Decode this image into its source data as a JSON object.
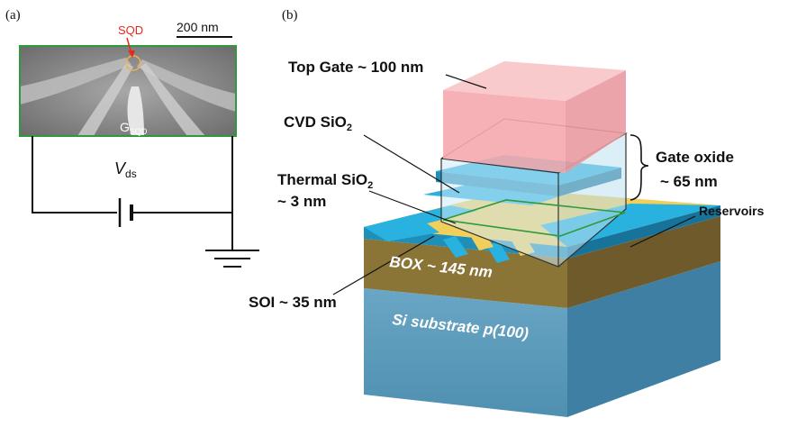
{
  "panel_a": {
    "panel_label": "(a)",
    "scale_bar_label": "200 nm",
    "sqd_label": "SQD",
    "gate_label_main": "G",
    "gate_label_sub": "SQD",
    "vds_main": "V",
    "vds_sub": "ds"
  },
  "panel_b": {
    "panel_label": "(b)",
    "top_gate": "Top Gate ~ 100 nm",
    "cvd_main": "CVD SiO",
    "cvd_sub": "2",
    "thermal_main": "Thermal SiO",
    "thermal_sub": "2",
    "thermal_thickness": "~ 3 nm",
    "gate_oxide_line1": "Gate oxide",
    "gate_oxide_line2": "~ 65 nm",
    "reservoirs": "Reservoirs",
    "soi": "SOI ~ 35 nm",
    "box": "BOX ~ 145 nm",
    "substrate": "Si substrate p(100)"
  },
  "colors": {
    "sem_border": "#2e9a3a",
    "sqd_red": "#e8281e",
    "top_gate": "#f4a9ae",
    "soi_cyan": "#29b2e0",
    "box_olive": "#8a7436",
    "substrate": "#5c9bbd",
    "gold": "#f2cf5b"
  }
}
